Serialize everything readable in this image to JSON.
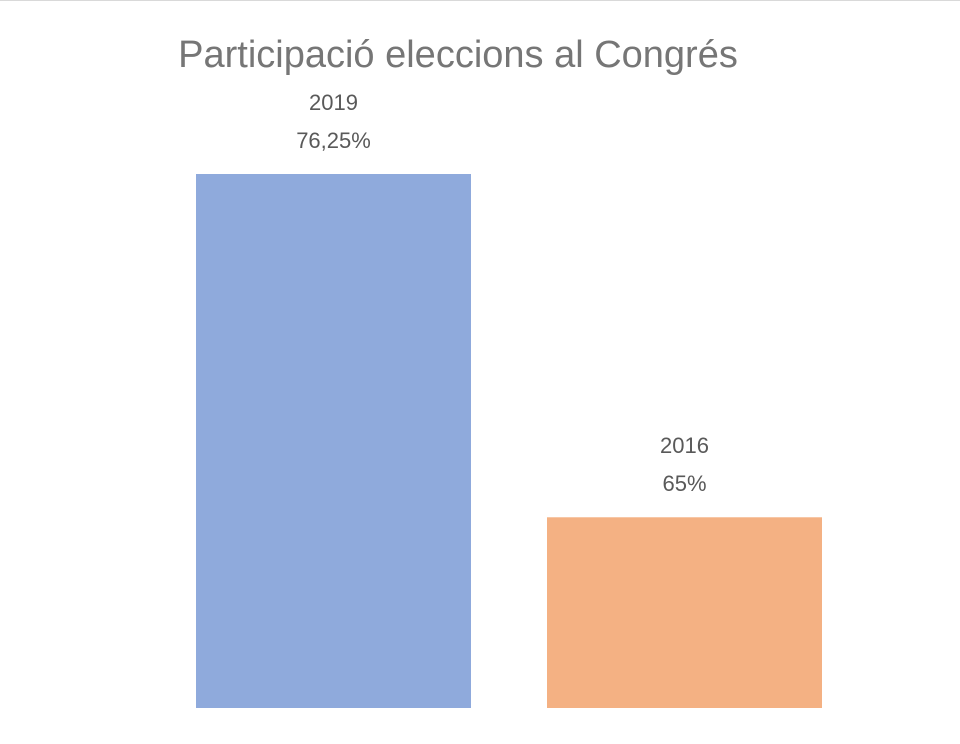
{
  "chart_data": {
    "type": "bar",
    "title": "Participació eleccions al Congrés",
    "categories": [
      "2019",
      "2016"
    ],
    "values": [
      76.25,
      65
    ],
    "value_labels": [
      "76,25%",
      "65%"
    ],
    "colors": [
      "#8faadc",
      "#f4b183"
    ],
    "ylim": [
      58.75,
      78
    ]
  }
}
